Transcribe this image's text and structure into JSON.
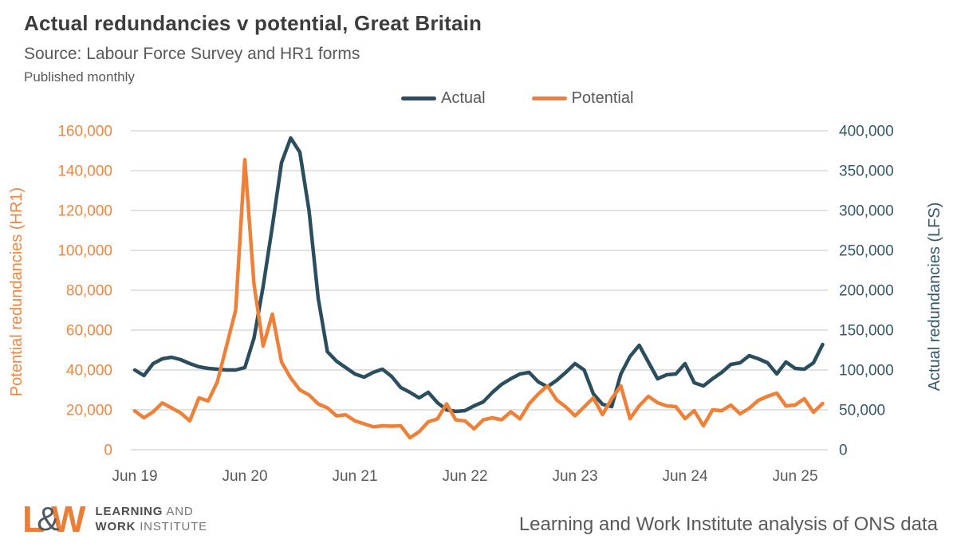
{
  "header": {
    "title": "Actual redundancies v potential, Great Britain",
    "subtitle": "Source: Labour Force Survey and HR1 forms",
    "note": "Published monthly"
  },
  "legend": {
    "items": [
      {
        "label": "Actual",
        "color": "#2a4e5e"
      },
      {
        "label": "Potential",
        "color": "#ef8038"
      }
    ]
  },
  "chart_data": {
    "type": "line",
    "title": "Actual redundancies v potential, Great Britain",
    "grid": true,
    "legend_position": "top",
    "x_tick_labels": [
      "Jun 19",
      "Jun 20",
      "Jun 21",
      "Jun 22",
      "Jun 23",
      "Jun 24",
      "Jun 25"
    ],
    "left_axis": {
      "title": "Potential redundancies (HR1)",
      "color": "#f0863f",
      "range": [
        0,
        160000
      ],
      "ticks": [
        "160,000",
        "140,000",
        "120,000",
        "100,000",
        "80,000",
        "60,000",
        "40,000",
        "20,000",
        "0"
      ]
    },
    "right_axis": {
      "title": "Actual redundancies (LFS)",
      "color": "#33596b",
      "range": [
        0,
        400000
      ],
      "ticks": [
        "400,000",
        "350,000",
        "300,000",
        "250,000",
        "200,000",
        "150,000",
        "100,000",
        "50,000",
        "0"
      ]
    },
    "months": [
      "Jun-19",
      "Jul-19",
      "Aug-19",
      "Sep-19",
      "Oct-19",
      "Nov-19",
      "Dec-19",
      "Jan-20",
      "Feb-20",
      "Mar-20",
      "Apr-20",
      "May-20",
      "Jun-20",
      "Jul-20",
      "Aug-20",
      "Sep-20",
      "Oct-20",
      "Nov-20",
      "Dec-20",
      "Jan-21",
      "Feb-21",
      "Mar-21",
      "Apr-21",
      "May-21",
      "Jun-21",
      "Jul-21",
      "Aug-21",
      "Sep-21",
      "Oct-21",
      "Nov-21",
      "Dec-21",
      "Jan-22",
      "Feb-22",
      "Mar-22",
      "Apr-22",
      "May-22",
      "Jun-22",
      "Jul-22",
      "Aug-22",
      "Sep-22",
      "Oct-22",
      "Nov-22",
      "Dec-22",
      "Jan-23",
      "Feb-23",
      "Mar-23",
      "Apr-23",
      "May-23",
      "Jun-23",
      "Jul-23",
      "Aug-23",
      "Sep-23",
      "Oct-23",
      "Nov-23",
      "Dec-23",
      "Jan-24",
      "Feb-24",
      "Mar-24",
      "Apr-24",
      "May-24",
      "Jun-24",
      "Jul-24",
      "Aug-24",
      "Sep-24",
      "Oct-24",
      "Nov-24",
      "Dec-24",
      "Jan-25",
      "Feb-25",
      "Mar-25",
      "Apr-25",
      "May-25",
      "Jun-25",
      "Jul-25",
      "Aug-25",
      "Sep-25"
    ],
    "series": [
      {
        "name": "Actual",
        "axis": "right",
        "color": "#2a4e5e",
        "values": [
          100000,
          93000,
          108000,
          114000,
          116000,
          113000,
          108000,
          104000,
          102000,
          101000,
          100000,
          100000,
          103000,
          140000,
          205000,
          280000,
          360000,
          391000,
          373000,
          300000,
          190000,
          123000,
          111000,
          103000,
          95000,
          91000,
          97000,
          101000,
          92000,
          78000,
          72000,
          65000,
          72000,
          59000,
          50000,
          48000,
          49000,
          55000,
          60000,
          72000,
          82000,
          89000,
          95000,
          97000,
          85000,
          79000,
          87000,
          97000,
          108000,
          100000,
          70000,
          57000,
          54000,
          95000,
          117000,
          131000,
          110000,
          89000,
          94000,
          95000,
          108000,
          84000,
          80000,
          89000,
          97000,
          107000,
          109000,
          118000,
          114000,
          109000,
          95000,
          110000,
          102000,
          101000,
          109000,
          132000
        ]
      },
      {
        "name": "Potential",
        "axis": "left",
        "color": "#ef8038",
        "values": [
          19500,
          16000,
          19000,
          23500,
          21000,
          18500,
          14500,
          26000,
          24500,
          34000,
          52000,
          70000,
          145500,
          83000,
          52000,
          68000,
          44000,
          36000,
          30000,
          27500,
          23000,
          21000,
          17000,
          17500,
          14500,
          13000,
          11500,
          12000,
          11800,
          12000,
          6000,
          9000,
          14000,
          15500,
          23000,
          15000,
          14500,
          10500,
          15000,
          16000,
          15000,
          19000,
          15500,
          23000,
          28000,
          32000,
          25000,
          21500,
          17000,
          21500,
          26000,
          17600,
          25600,
          32000,
          15600,
          22000,
          26800,
          23600,
          22000,
          21600,
          15600,
          19600,
          12000,
          20000,
          19600,
          22400,
          18000,
          20800,
          24800,
          26800,
          28400,
          22000,
          22400,
          25600,
          18800,
          23200
        ]
      }
    ]
  },
  "footer": {
    "logo": {
      "l": "L",
      "amp": "&",
      "w": "W",
      "line1_bold": "LEARNING",
      "line1_light": " AND",
      "line2_bold": "WORK",
      "line2_light": " INSTITUTE"
    },
    "attribution": "Learning and Work Institute analysis of ONS data"
  }
}
